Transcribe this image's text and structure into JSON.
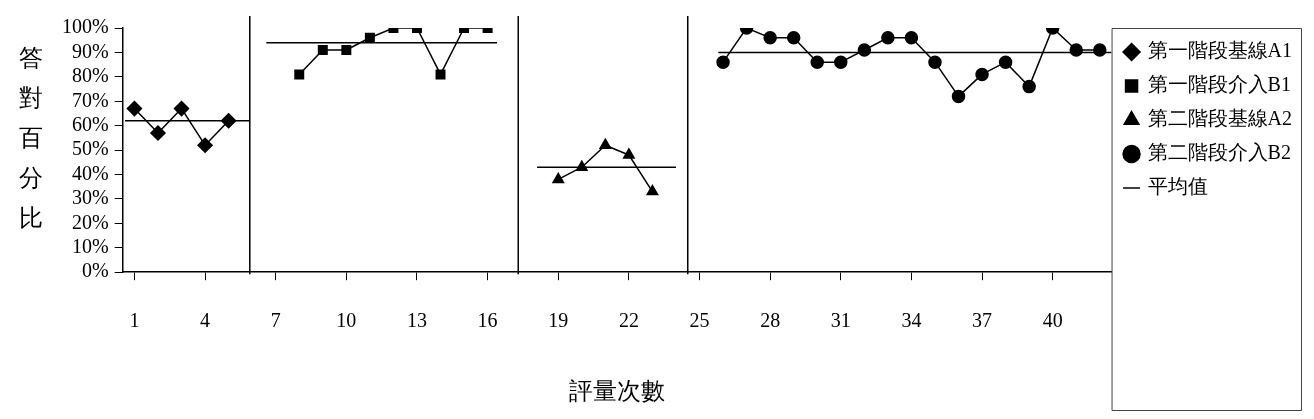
{
  "chart_data": {
    "type": "line",
    "xlabel": "評量次數",
    "ylabel": "答對百分比",
    "xlim": [
      0.5,
      42.5
    ],
    "xticks": [
      1,
      4,
      7,
      10,
      13,
      16,
      19,
      22,
      25,
      28,
      31,
      34,
      37,
      40
    ],
    "ylim": [
      0,
      100
    ],
    "yticks": [
      {
        "value": 0,
        "label": "0%"
      },
      {
        "value": 10,
        "label": "10%"
      },
      {
        "value": 20,
        "label": "20%"
      },
      {
        "value": 30,
        "label": "30%"
      },
      {
        "value": 40,
        "label": "40%"
      },
      {
        "value": 50,
        "label": "50%"
      },
      {
        "value": 60,
        "label": "60%"
      },
      {
        "value": 70,
        "label": "70%"
      },
      {
        "value": 80,
        "label": "80%"
      },
      {
        "value": 90,
        "label": "90%"
      },
      {
        "value": 100,
        "label": "100%"
      }
    ],
    "grid": false,
    "legend": "right",
    "line_style": "solid",
    "series": [
      {
        "name": "第一階段基線A1",
        "color": "#000000",
        "marker": "diamond",
        "x": [
          1,
          2,
          3,
          4,
          5
        ],
        "values": [
          67,
          57,
          67,
          52,
          62
        ]
      },
      {
        "name": "第一階段介入B1",
        "color": "#000000",
        "marker": "square",
        "x": [
          8,
          9,
          10,
          11,
          12,
          13,
          14,
          15,
          16
        ],
        "values": [
          81,
          91,
          91,
          96,
          100,
          100,
          81,
          100,
          100
        ]
      },
      {
        "name": "第二階段基線A2",
        "color": "#000000",
        "marker": "triangle",
        "x": [
          19,
          20,
          21,
          22,
          23
        ],
        "values": [
          38,
          43,
          52,
          48,
          33
        ]
      },
      {
        "name": "第二階段介入B2",
        "color": "#000000",
        "marker": "circle",
        "x": [
          26,
          27,
          28,
          29,
          30,
          31,
          32,
          33,
          34,
          35,
          36,
          37,
          38,
          39,
          40,
          41,
          42
        ],
        "values": [
          86,
          100,
          96,
          96,
          86,
          86,
          91,
          96,
          96,
          86,
          72,
          81,
          86,
          76,
          100,
          91,
          91
        ]
      },
      {
        "name": "平均值",
        "color": "#000000",
        "marker": "none",
        "x": [
          0.6,
          5.9
        ],
        "values": [
          62,
          62
        ]
      },
      {
        "color": "#000000",
        "marker": "none",
        "x": [
          6.6,
          16.4
        ],
        "values": [
          94,
          94
        ]
      },
      {
        "color": "#000000",
        "marker": "none",
        "x": [
          18.1,
          24.0
        ],
        "values": [
          43,
          43
        ]
      },
      {
        "color": "#000000",
        "marker": "none",
        "x": [
          25.8,
          42.5
        ],
        "values": [
          90,
          90
        ]
      }
    ],
    "ref_lines": [
      {
        "axis": "x",
        "value": 5.9,
        "color": "#000000"
      },
      {
        "axis": "x",
        "value": 17.3,
        "color": "#000000"
      },
      {
        "axis": "x",
        "value": 24.5,
        "color": "#000000"
      }
    ]
  }
}
